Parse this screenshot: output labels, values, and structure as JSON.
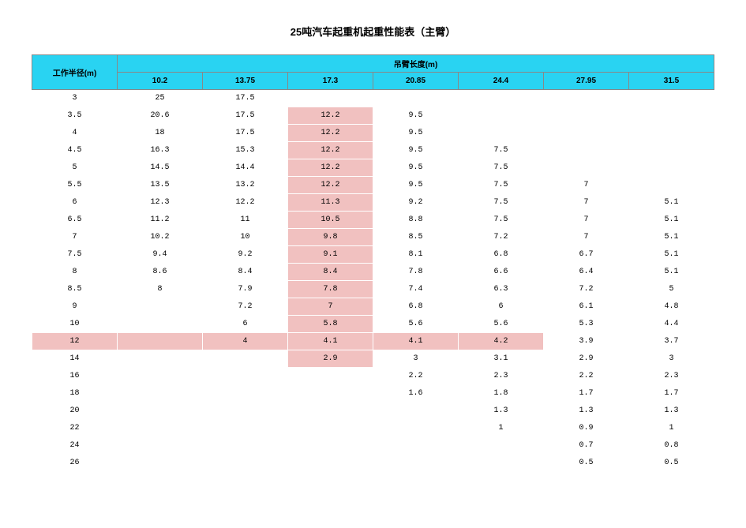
{
  "title": "25吨汽车起重机起重性能表（主臂）",
  "row_header_label": "工作半径(m)",
  "col_group_label": "吊臂长度(m)",
  "columns": [
    "10.2",
    "13.75",
    "17.3",
    "20.85",
    "24.4",
    "27.95",
    "31.5"
  ],
  "colors": {
    "header_bg": "#29d3f2",
    "highlight_bg": "#f1c1c0",
    "border": "#888888",
    "text": "#000000",
    "page_bg": "#ffffff"
  },
  "highlight_column_index": 2,
  "highlight_row_index": 13,
  "rows": [
    {
      "r": "3",
      "v": [
        "25",
        "17.5",
        "",
        "",
        "",
        "",
        ""
      ]
    },
    {
      "r": "3.5",
      "v": [
        "20.6",
        "17.5",
        "12.2",
        "9.5",
        "",
        "",
        ""
      ]
    },
    {
      "r": "4",
      "v": [
        "18",
        "17.5",
        "12.2",
        "9.5",
        "",
        "",
        ""
      ]
    },
    {
      "r": "4.5",
      "v": [
        "16.3",
        "15.3",
        "12.2",
        "9.5",
        "7.5",
        "",
        ""
      ]
    },
    {
      "r": "5",
      "v": [
        "14.5",
        "14.4",
        "12.2",
        "9.5",
        "7.5",
        "",
        ""
      ]
    },
    {
      "r": "5.5",
      "v": [
        "13.5",
        "13.2",
        "12.2",
        "9.5",
        "7.5",
        "7",
        ""
      ]
    },
    {
      "r": "6",
      "v": [
        "12.3",
        "12.2",
        "11.3",
        "9.2",
        "7.5",
        "7",
        "5.1"
      ]
    },
    {
      "r": "6.5",
      "v": [
        "11.2",
        "11",
        "10.5",
        "8.8",
        "7.5",
        "7",
        "5.1"
      ]
    },
    {
      "r": "7",
      "v": [
        "10.2",
        "10",
        "9.8",
        "8.5",
        "7.2",
        "7",
        "5.1"
      ]
    },
    {
      "r": "7.5",
      "v": [
        "9.4",
        "9.2",
        "9.1",
        "8.1",
        "6.8",
        "6.7",
        "5.1"
      ]
    },
    {
      "r": "8",
      "v": [
        "8.6",
        "8.4",
        "8.4",
        "7.8",
        "6.6",
        "6.4",
        "5.1"
      ]
    },
    {
      "r": "8.5",
      "v": [
        "8",
        "7.9",
        "7.8",
        "7.4",
        "6.3",
        "7.2",
        "5"
      ]
    },
    {
      "r": "9",
      "v": [
        "",
        "7.2",
        "7",
        "6.8",
        "6",
        "6.1",
        "4.8"
      ]
    },
    {
      "r": "10",
      "v": [
        "",
        "6",
        "5.8",
        "5.6",
        "5.6",
        "5.3",
        "4.4"
      ]
    },
    {
      "r": "12",
      "v": [
        "",
        "4",
        "4.1",
        "4.1",
        "4.2",
        "3.9",
        "3.7"
      ]
    },
    {
      "r": "14",
      "v": [
        "",
        "",
        "2.9",
        "3",
        "3.1",
        "2.9",
        "3"
      ]
    },
    {
      "r": "16",
      "v": [
        "",
        "",
        "",
        "2.2",
        "2.3",
        "2.2",
        "2.3"
      ]
    },
    {
      "r": "18",
      "v": [
        "",
        "",
        "",
        "1.6",
        "1.8",
        "1.7",
        "1.7"
      ]
    },
    {
      "r": "20",
      "v": [
        "",
        "",
        "",
        "",
        "1.3",
        "1.3",
        "1.3"
      ]
    },
    {
      "r": "22",
      "v": [
        "",
        "",
        "",
        "",
        "1",
        "0.9",
        "1"
      ]
    },
    {
      "r": "24",
      "v": [
        "",
        "",
        "",
        "",
        "",
        "0.7",
        "0.8"
      ]
    },
    {
      "r": "26",
      "v": [
        "",
        "",
        "",
        "",
        "",
        "0.5",
        "0.5"
      ]
    }
  ]
}
